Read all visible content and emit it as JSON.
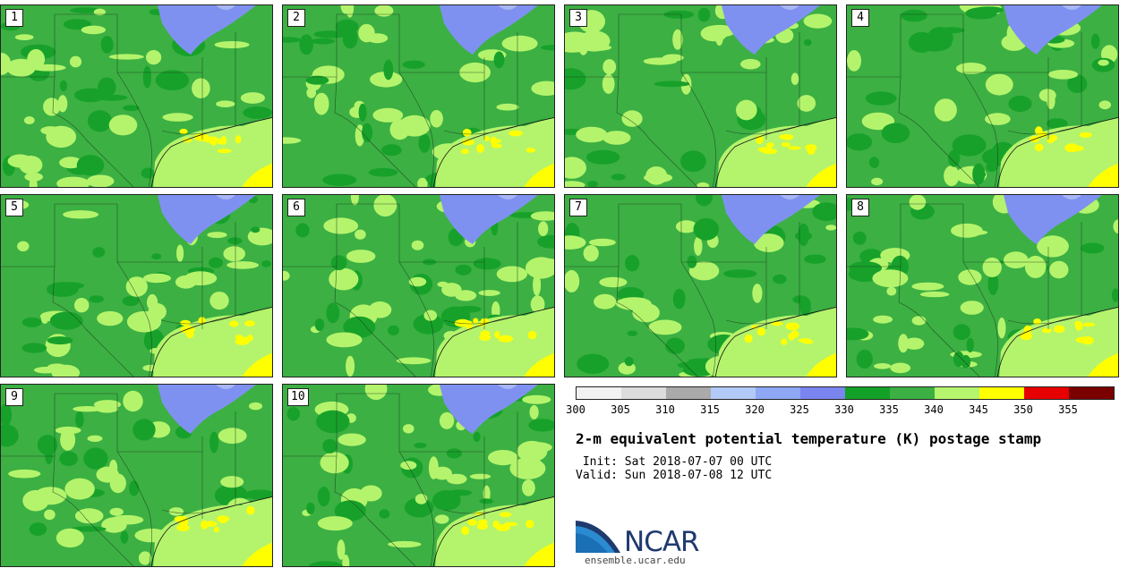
{
  "members": [
    "1",
    "2",
    "3",
    "4",
    "5",
    "6",
    "7",
    "8",
    "9",
    "10"
  ],
  "colors": {
    "cold": "#7f91f0",
    "cold_light": "#a8b6f6",
    "green_dark": "#17a12a",
    "green_mid": "#3cb043",
    "green_light": "#b4f46c",
    "yellow": "#ffff00",
    "border": "#222222"
  },
  "colorbar": {
    "colors": [
      "#f2f2f2",
      "#dcdcdc",
      "#aaaaaa",
      "#b3c9f7",
      "#8ea8f5",
      "#7b85ef",
      "#12a126",
      "#3cb043",
      "#b6f56e",
      "#ffff00",
      "#e60000",
      "#7a0000"
    ],
    "ticks": [
      "300",
      "305",
      "310",
      "315",
      "320",
      "325",
      "330",
      "335",
      "340",
      "345",
      "350",
      "355"
    ]
  },
  "title": "2-m equivalent potential temperature (K) postage stamp",
  "init": " Init: Sat 2018-07-07 00 UTC",
  "valid": "Valid: Sun 2018-07-08 12 UTC",
  "logo_text": "NCAR",
  "site": "ensemble.ucar.edu"
}
